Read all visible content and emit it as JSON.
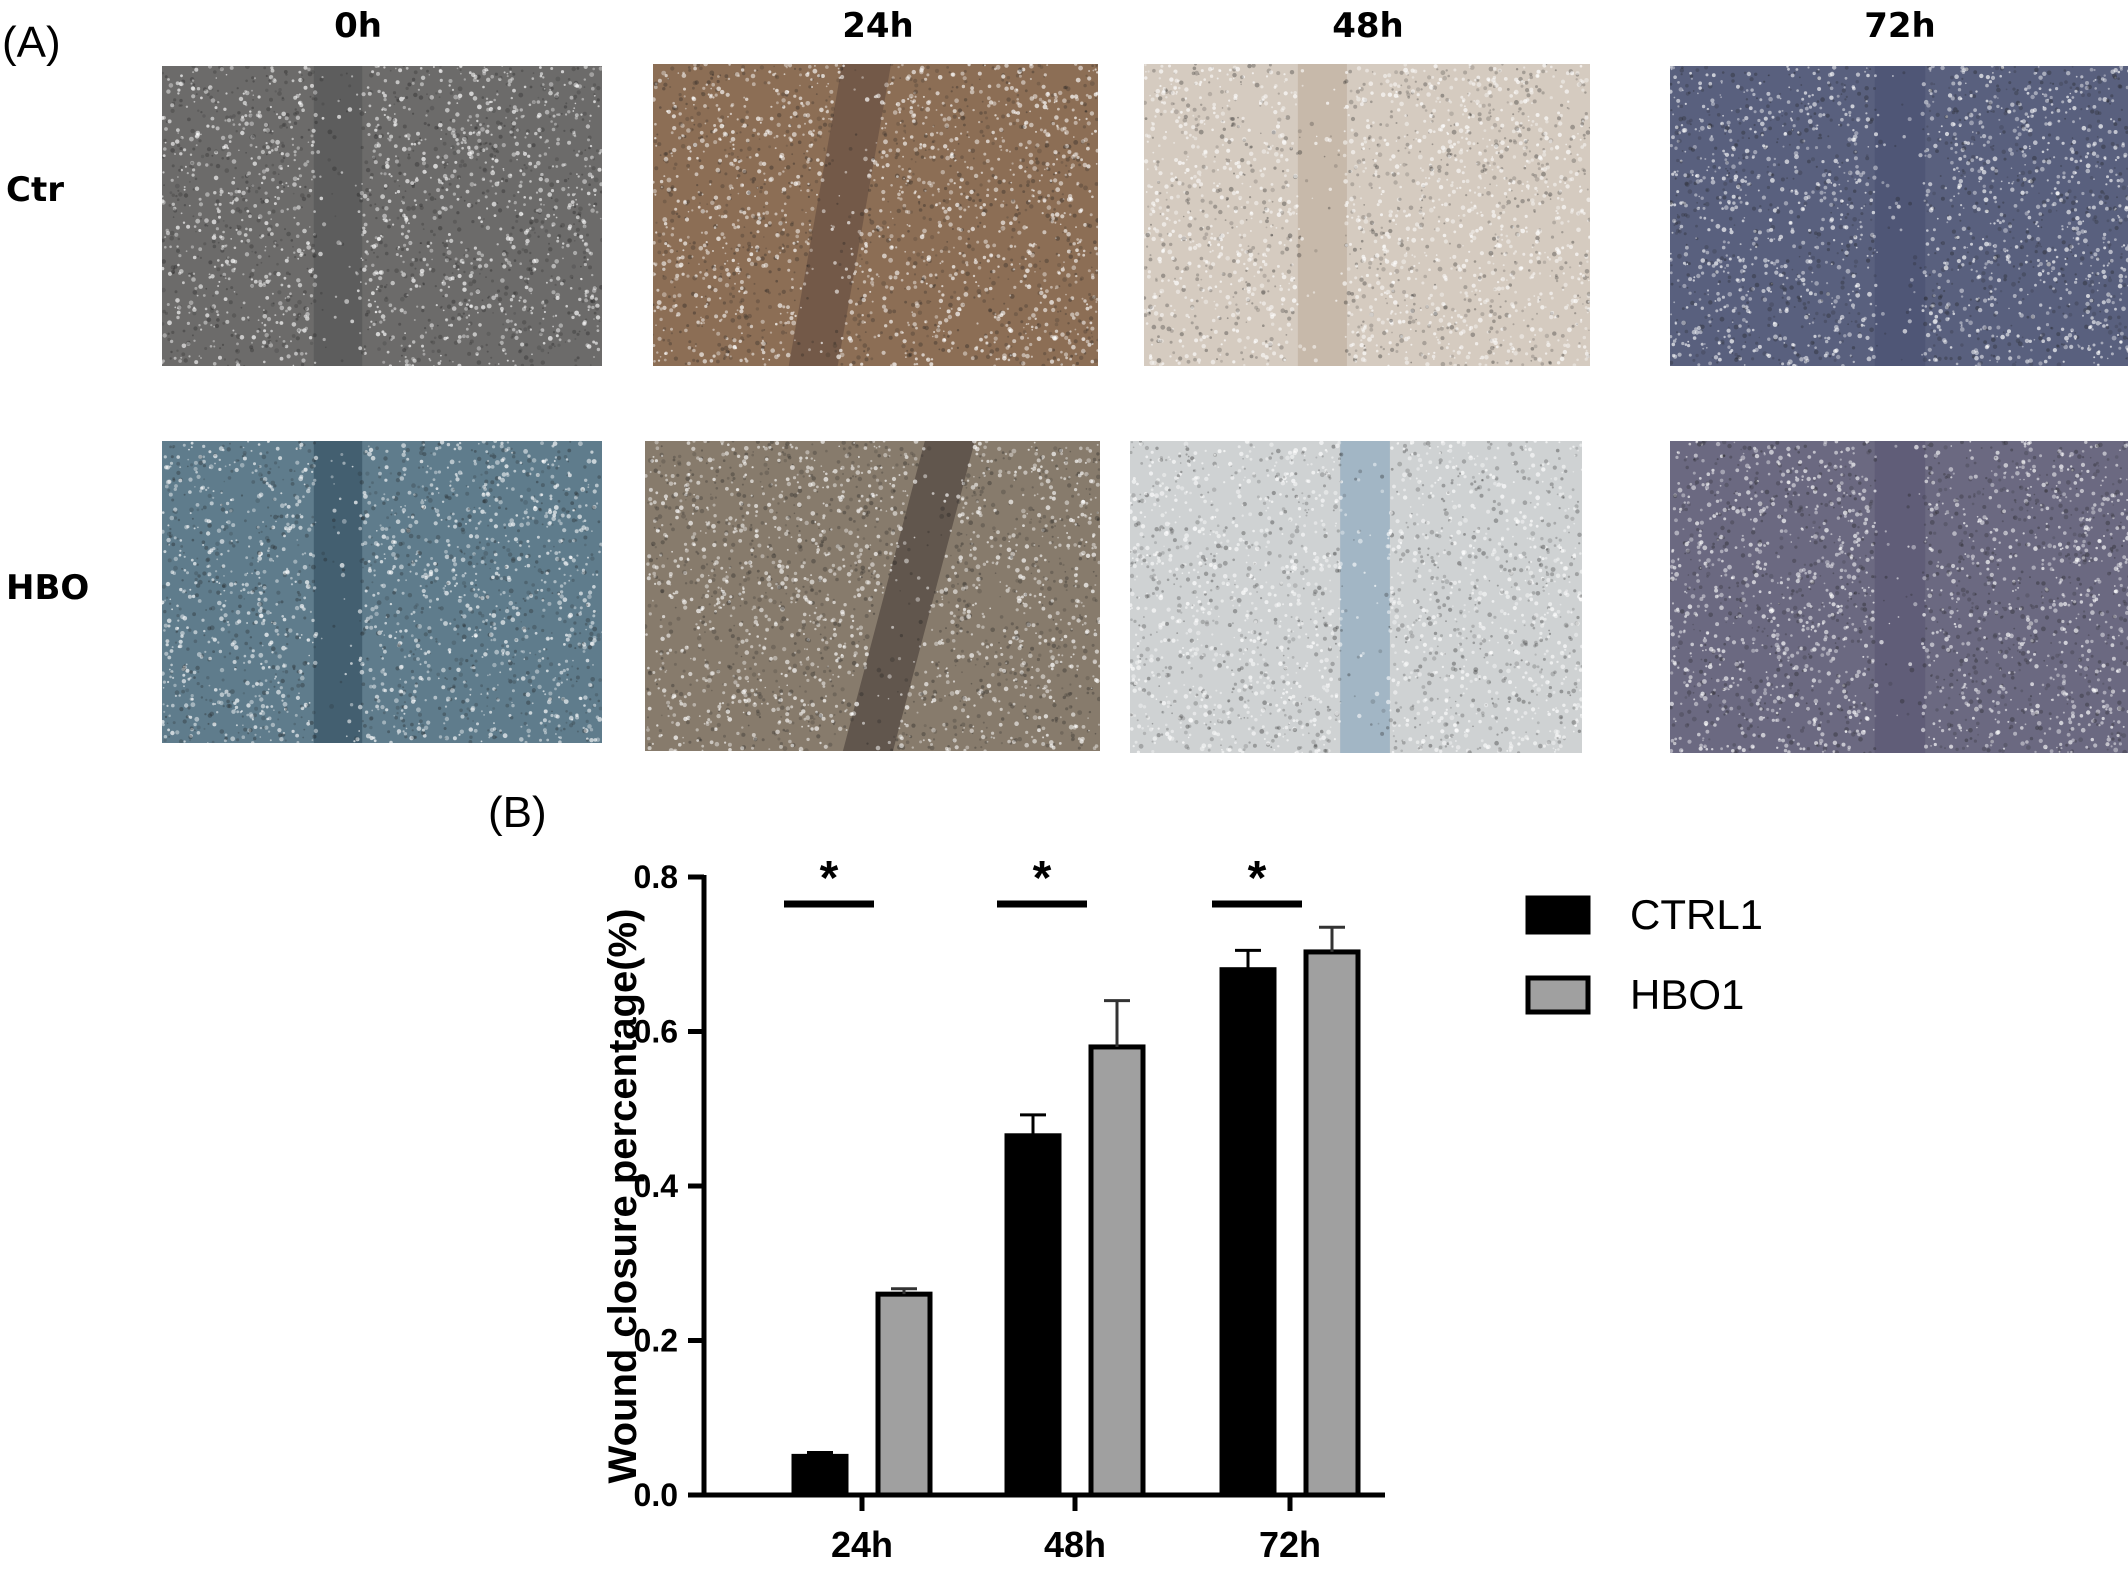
{
  "panel_a": {
    "letter": "(A)",
    "columns": [
      "0h",
      "24h",
      "48h",
      "72h"
    ],
    "rows": [
      "Ctr",
      "HBO"
    ],
    "tints": [
      [
        "#6c6b6a",
        "#8c6e55",
        "#d5cbc0",
        "#59607e"
      ],
      [
        "#5f7c8c",
        "#877b6c",
        "#cfd2d3",
        "#6b6981"
      ]
    ],
    "gap_tints": [
      [
        "#5a5a5a",
        "#6e5646",
        "#c4b6a6",
        "#4e5574"
      ],
      [
        "#3e5a6b",
        "#5a5048",
        "#9ab2c2",
        "#5e5c77"
      ]
    ]
  },
  "panel_b": {
    "letter": "(B)",
    "chart_data": {
      "type": "bar",
      "categories": [
        "24h",
        "48h",
        "72h"
      ],
      "series": [
        {
          "name": "CTRL1",
          "values": [
            0.05,
            0.465,
            0.68
          ],
          "errors": [
            0.005,
            0.027,
            0.025
          ],
          "color": "#000000"
        },
        {
          "name": "HBO1",
          "values": [
            0.26,
            0.58,
            0.703
          ],
          "errors": [
            0.007,
            0.06,
            0.032
          ],
          "color": "#a0a0a0"
        }
      ],
      "ylabel": "Wound closure percentage(%)",
      "xlabel": "",
      "ylim": [
        0,
        0.8
      ],
      "yticks": [
        "0.0",
        "0.2",
        "0.4",
        "0.6",
        "0.8"
      ],
      "significance": [
        "*",
        "*",
        "*"
      ],
      "legend_position": "right",
      "grid": false
    }
  }
}
